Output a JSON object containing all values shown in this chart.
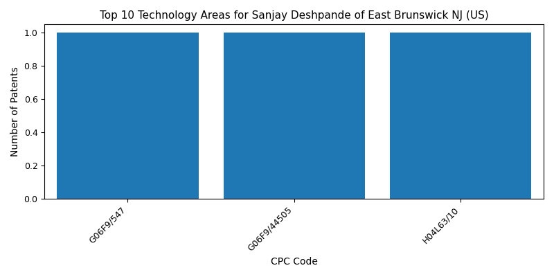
{
  "title": "Top 10 Technology Areas for Sanjay Deshpande of East Brunswick NJ (US)",
  "xlabel": "CPC Code",
  "ylabel": "Number of Patents",
  "categories": [
    "G06F9/547",
    "G06F9/44505",
    "H04L63/10"
  ],
  "values": [
    1,
    1,
    1
  ],
  "bar_color": "#1f77b4",
  "bar_width": 0.85,
  "ylim": [
    0,
    1.05
  ],
  "yticks": [
    0.0,
    0.2,
    0.4,
    0.6,
    0.8,
    1.0
  ],
  "title_fontsize": 11,
  "label_fontsize": 10,
  "tick_fontsize": 9,
  "figsize": [
    8.0,
    4.0
  ],
  "dpi": 100
}
